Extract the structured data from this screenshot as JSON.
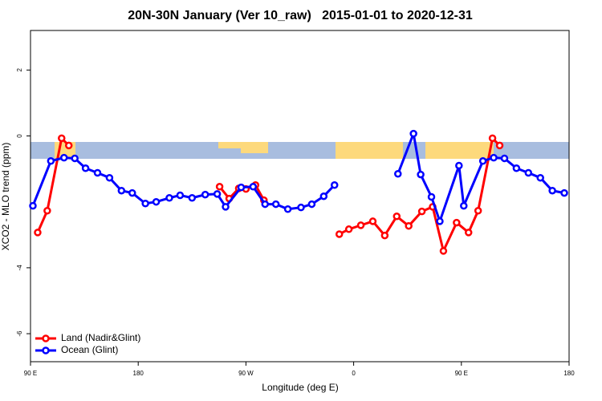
{
  "chart_data": {
    "type": "line",
    "title": "20N-30N January (Ver 10_raw)   2015-01-01 to 2020-12-31",
    "x_label": "Longitude (deg E)",
    "y_label": "XCO2 - MLO trend (ppm)",
    "xlim": [
      90,
      540
    ],
    "ylim": [
      -6.85,
      3.2
    ],
    "xticks": [
      {
        "value": 90,
        "label": "90 E"
      },
      180,
      {
        "value": 270,
        "label": "90 W"
      },
      {
        "value": 360,
        "label": "0"
      },
      {
        "value": 450,
        "label": "90 E"
      },
      {
        "value": 540,
        "label": "180"
      }
    ],
    "yticks": [
      -6,
      -4,
      0,
      2
    ],
    "legend": "bottom-left",
    "series": [
      {
        "name": "Land (Nadir&Glint)",
        "color": "#ff0000",
        "x": [
          96,
          104,
          116,
          122,
          185,
          248,
          256,
          264,
          270,
          278,
          285,
          316,
          348,
          356,
          366,
          376,
          386,
          396,
          406,
          417,
          426,
          435,
          446,
          456,
          464,
          476,
          482
        ],
        "values": [
          -2.93,
          -2.27,
          -0.07,
          -0.29,
          null,
          -1.54,
          -1.9,
          -1.59,
          -1.61,
          -1.49,
          -1.95,
          null,
          -2.98,
          -2.83,
          -2.71,
          -2.59,
          -3.02,
          -2.44,
          -2.73,
          -2.29,
          -2.15,
          -3.49,
          -2.63,
          -2.93,
          -2.27,
          -0.07,
          -0.29
        ]
      },
      {
        "name": "Ocean (Glint)",
        "color": "#0000ff",
        "x": [
          92,
          107,
          118,
          127,
          136,
          146,
          156,
          166,
          175,
          186,
          195,
          206,
          215,
          225,
          236,
          246,
          253,
          266,
          276,
          286,
          295,
          305,
          316,
          325,
          335,
          344,
          370,
          397,
          410,
          416,
          425,
          432,
          448,
          452,
          468,
          477,
          486,
          496,
          506,
          516,
          526,
          536
        ],
        "values": [
          -2.12,
          -0.76,
          -0.66,
          -0.68,
          -0.98,
          -1.12,
          -1.27,
          -1.66,
          -1.73,
          -2.05,
          -2.0,
          -1.88,
          -1.8,
          -1.88,
          -1.78,
          -1.76,
          -2.15,
          -1.56,
          -1.54,
          -2.07,
          -2.07,
          -2.22,
          -2.17,
          -2.07,
          -1.83,
          -1.49,
          null,
          -1.15,
          0.07,
          -1.17,
          -1.85,
          -2.59,
          -0.9,
          -2.12,
          -0.76,
          -0.66,
          -0.68,
          -0.98,
          -1.12,
          -1.27,
          -1.66,
          -1.73
        ]
      }
    ]
  }
}
